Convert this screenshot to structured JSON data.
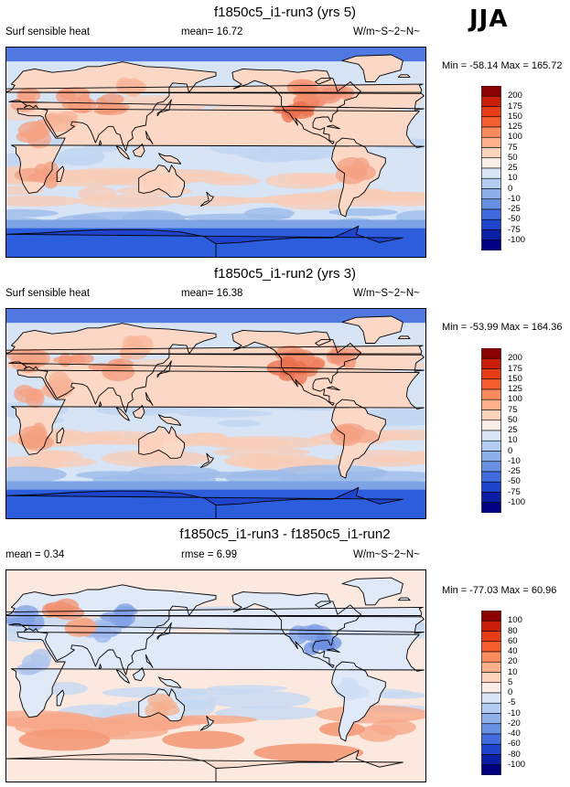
{
  "season": "JJA",
  "panels": [
    {
      "title": "f1850c5_i1-run3 (yrs 5)",
      "left_label": "Surf sensible heat",
      "center_label": "mean=  16.72",
      "right_label": "W/m~S~2~N~",
      "min_max": "Min = -58.14 Max = 165.72"
    },
    {
      "title": "f1850c5_i1-run2 (yrs 3)",
      "left_label": "Surf sensible heat",
      "center_label": "mean=  16.38",
      "right_label": "W/m~S~2~N~",
      "min_max": "Min = -53.99 Max = 164.36"
    },
    {
      "title": "f1850c5_i1-run3 - f1850c5_i1-run2",
      "left_label": "mean =   0.34",
      "center_label": "rmse =   6.99",
      "right_label": "W/m~S~2~N~",
      "min_max": "Min = -77.03 Max = 60.96"
    }
  ],
  "chart_data": [
    {
      "type": "heatmap",
      "title": "f1850c5_i1-run3 (yrs 5)",
      "variable": "Surf sensible heat",
      "units": "W/m~S~2~N~",
      "mean": 16.72,
      "min": -58.14,
      "max": 165.72,
      "colorbar_levels": [
        "200",
        "175",
        "150",
        "125",
        "100",
        "75",
        "50",
        "25",
        "10",
        "0",
        "-10",
        "-25",
        "-50",
        "-75",
        "-100"
      ],
      "colorbar_colors": [
        "#8b0000",
        "#c81e0a",
        "#e83c14",
        "#f55e2e",
        "#fb8a5c",
        "#fdb08a",
        "#fdd3bc",
        "#fbeee6",
        "#d8e6f7",
        "#b2cdf1",
        "#8db0ea",
        "#6890e2",
        "#3f6bde",
        "#1f44cc",
        "#0a1fa6",
        "#000080"
      ]
    },
    {
      "type": "heatmap",
      "title": "f1850c5_i1-run2 (yrs 3)",
      "variable": "Surf sensible heat",
      "units": "W/m~S~2~N~",
      "mean": 16.38,
      "min": -53.99,
      "max": 164.36,
      "colorbar_levels": [
        "200",
        "175",
        "150",
        "125",
        "100",
        "75",
        "50",
        "25",
        "10",
        "0",
        "-10",
        "-25",
        "-50",
        "-75",
        "-100"
      ],
      "colorbar_colors": [
        "#8b0000",
        "#c81e0a",
        "#e83c14",
        "#f55e2e",
        "#fb8a5c",
        "#fdb08a",
        "#fdd3bc",
        "#fbeee6",
        "#d8e6f7",
        "#b2cdf1",
        "#8db0ea",
        "#6890e2",
        "#3f6bde",
        "#1f44cc",
        "#0a1fa6",
        "#000080"
      ]
    },
    {
      "type": "heatmap",
      "title": "f1850c5_i1-run3 - f1850c5_i1-run2",
      "units": "W/m~S~2~N~",
      "mean": 0.34,
      "rmse": 6.99,
      "min": -77.03,
      "max": 60.96,
      "colorbar_levels": [
        "100",
        "80",
        "60",
        "40",
        "20",
        "10",
        "5",
        "0",
        "-5",
        "-10",
        "-20",
        "-40",
        "-60",
        "-80",
        "-100"
      ],
      "colorbar_colors": [
        "#8b0000",
        "#c81e0a",
        "#e83c14",
        "#f55e2e",
        "#fb8a5c",
        "#fdb08a",
        "#fdd3bc",
        "#fbeee6",
        "#d8e6f7",
        "#b2cdf1",
        "#8db0ea",
        "#6890e2",
        "#3f6bde",
        "#1f44cc",
        "#0a1fa6",
        "#000080"
      ]
    }
  ]
}
